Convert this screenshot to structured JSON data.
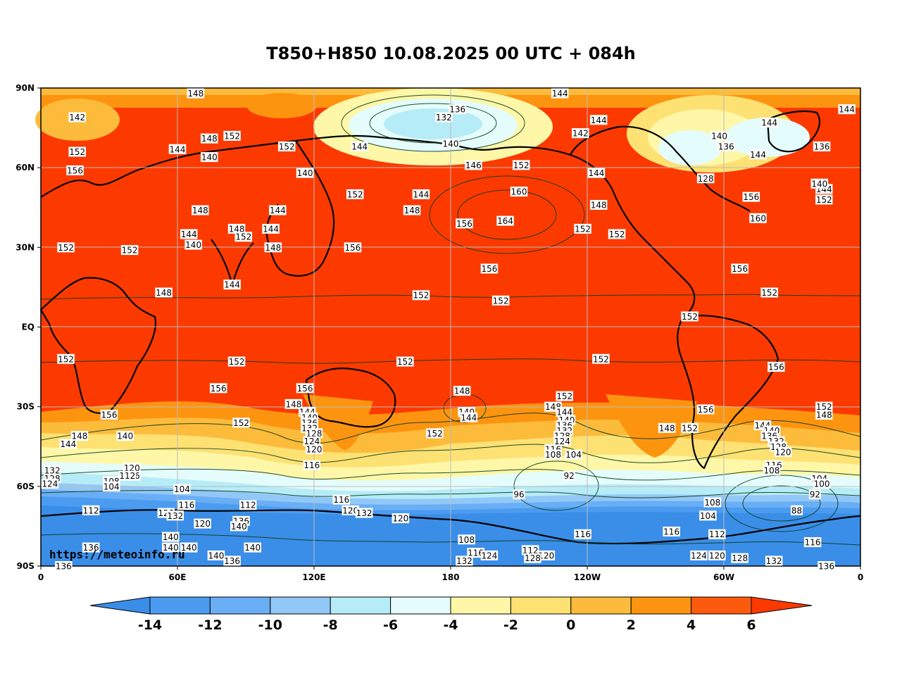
{
  "title": "T850+H850 10.08.2025 00 UTC + 084h",
  "credit": "https://meteoinfo.ru",
  "map": {
    "lat_labels": [
      "90N",
      "60N",
      "30N",
      "EQ",
      "30S",
      "60S",
      "90S"
    ],
    "lon_labels": [
      "0",
      "60E",
      "120E",
      "180",
      "120W",
      "60W",
      "0"
    ],
    "contour_labels": [
      {
        "text": "148",
        "lon": 68,
        "lat": 88
      },
      {
        "text": "144",
        "lon": 228,
        "lat": 88
      },
      {
        "text": "144",
        "lon": 354,
        "lat": 82
      },
      {
        "text": "136",
        "lon": 183,
        "lat": 82
      },
      {
        "text": "132",
        "lon": 177,
        "lat": 79
      },
      {
        "text": "144",
        "lon": 320,
        "lat": 77
      },
      {
        "text": "144",
        "lon": 245,
        "lat": 78
      },
      {
        "text": "142",
        "lon": 237,
        "lat": 73
      },
      {
        "text": "140",
        "lon": 298,
        "lat": 72
      },
      {
        "text": "136",
        "lon": 301,
        "lat": 68
      },
      {
        "text": "136",
        "lon": 343,
        "lat": 68
      },
      {
        "text": "144",
        "lon": 315,
        "lat": 65
      },
      {
        "text": "140",
        "lon": 180,
        "lat": 69
      },
      {
        "text": "144",
        "lon": 140,
        "lat": 68
      },
      {
        "text": "146",
        "lon": 190,
        "lat": 61
      },
      {
        "text": "152",
        "lon": 211,
        "lat": 61
      },
      {
        "text": "144",
        "lon": 244,
        "lat": 58
      },
      {
        "text": "128",
        "lon": 292,
        "lat": 56
      },
      {
        "text": "140",
        "lon": 116,
        "lat": 58
      },
      {
        "text": "142",
        "lon": 16,
        "lat": 79
      },
      {
        "text": "152",
        "lon": 16,
        "lat": 66
      },
      {
        "text": "156",
        "lon": 15,
        "lat": 59
      },
      {
        "text": "144",
        "lon": 60,
        "lat": 67
      },
      {
        "text": "148",
        "lon": 74,
        "lat": 71
      },
      {
        "text": "152",
        "lon": 84,
        "lat": 72
      },
      {
        "text": "140",
        "lon": 74,
        "lat": 64
      },
      {
        "text": "152",
        "lon": 108,
        "lat": 68
      },
      {
        "text": "152",
        "lon": 138,
        "lat": 50
      },
      {
        "text": "144",
        "lon": 167,
        "lat": 50
      },
      {
        "text": "148",
        "lon": 163,
        "lat": 44
      },
      {
        "text": "160",
        "lon": 210,
        "lat": 51
      },
      {
        "text": "156",
        "lon": 186,
        "lat": 39
      },
      {
        "text": "164",
        "lon": 204,
        "lat": 40
      },
      {
        "text": "148",
        "lon": 245,
        "lat": 46
      },
      {
        "text": "152",
        "lon": 238,
        "lat": 37
      },
      {
        "text": "152",
        "lon": 253,
        "lat": 35
      },
      {
        "text": "144",
        "lon": 344,
        "lat": 52
      },
      {
        "text": "140",
        "lon": 342,
        "lat": 54
      },
      {
        "text": "152",
        "lon": 344,
        "lat": 48
      },
      {
        "text": "156",
        "lon": 312,
        "lat": 49
      },
      {
        "text": "160",
        "lon": 315,
        "lat": 41
      },
      {
        "text": "156",
        "lon": 307,
        "lat": 22
      },
      {
        "text": "152",
        "lon": 320,
        "lat": 13
      },
      {
        "text": "148",
        "lon": 70,
        "lat": 44
      },
      {
        "text": "144",
        "lon": 65,
        "lat": 35
      },
      {
        "text": "140",
        "lon": 67,
        "lat": 31
      },
      {
        "text": "144",
        "lon": 104,
        "lat": 44
      },
      {
        "text": "148",
        "lon": 86,
        "lat": 37
      },
      {
        "text": "152",
        "lon": 89,
        "lat": 34
      },
      {
        "text": "144",
        "lon": 101,
        "lat": 37
      },
      {
        "text": "148",
        "lon": 102,
        "lat": 30
      },
      {
        "text": "152",
        "lon": 11,
        "lat": 30
      },
      {
        "text": "152",
        "lon": 39,
        "lat": 29
      },
      {
        "text": "156",
        "lon": 137,
        "lat": 30
      },
      {
        "text": "156",
        "lon": 197,
        "lat": 22
      },
      {
        "text": "144",
        "lon": 84,
        "lat": 16
      },
      {
        "text": "148",
        "lon": 54,
        "lat": 13
      },
      {
        "text": "152",
        "lon": 167,
        "lat": 12
      },
      {
        "text": "152",
        "lon": 202,
        "lat": 10
      },
      {
        "text": "152",
        "lon": 285,
        "lat": 4
      },
      {
        "text": "152",
        "lon": 11,
        "lat": -12
      },
      {
        "text": "152",
        "lon": 86,
        "lat": -13
      },
      {
        "text": "152",
        "lon": 160,
        "lat": -13
      },
      {
        "text": "152",
        "lon": 246,
        "lat": -12
      },
      {
        "text": "156",
        "lon": 323,
        "lat": -15
      },
      {
        "text": "156",
        "lon": 78,
        "lat": -23
      },
      {
        "text": "156",
        "lon": 116,
        "lat": -23
      },
      {
        "text": "148",
        "lon": 111,
        "lat": -29
      },
      {
        "text": "144",
        "lon": 117,
        "lat": -32
      },
      {
        "text": "140",
        "lon": 118,
        "lat": -34
      },
      {
        "text": "136",
        "lon": 118,
        "lat": -36
      },
      {
        "text": "132",
        "lon": 118,
        "lat": -38
      },
      {
        "text": "128",
        "lon": 120,
        "lat": -40
      },
      {
        "text": "124",
        "lon": 119,
        "lat": -43
      },
      {
        "text": "120",
        "lon": 120,
        "lat": -46
      },
      {
        "text": "116",
        "lon": 119,
        "lat": -52
      },
      {
        "text": "156",
        "lon": 30,
        "lat": -33
      },
      {
        "text": "152",
        "lon": 88,
        "lat": -36
      },
      {
        "text": "148",
        "lon": 17,
        "lat": -41
      },
      {
        "text": "144",
        "lon": 12,
        "lat": -44
      },
      {
        "text": "140",
        "lon": 37,
        "lat": -41
      },
      {
        "text": "148",
        "lon": 185,
        "lat": -24
      },
      {
        "text": "140",
        "lon": 187,
        "lat": -32
      },
      {
        "text": "144",
        "lon": 188,
        "lat": -34
      },
      {
        "text": "152",
        "lon": 173,
        "lat": -40
      },
      {
        "text": "152",
        "lon": 230,
        "lat": -26
      },
      {
        "text": "148",
        "lon": 225,
        "lat": -30
      },
      {
        "text": "144",
        "lon": 230,
        "lat": -32
      },
      {
        "text": "140",
        "lon": 231,
        "lat": -35
      },
      {
        "text": "136",
        "lon": 230,
        "lat": -37
      },
      {
        "text": "132",
        "lon": 230,
        "lat": -39
      },
      {
        "text": "128",
        "lon": 229,
        "lat": -41
      },
      {
        "text": "124",
        "lon": 229,
        "lat": -43
      },
      {
        "text": "116",
        "lon": 225,
        "lat": -46
      },
      {
        "text": "108",
        "lon": 225,
        "lat": -48
      },
      {
        "text": "104",
        "lon": 234,
        "lat": -48
      },
      {
        "text": "92",
        "lon": 232,
        "lat": -56
      },
      {
        "text": "96",
        "lon": 210,
        "lat": -63
      },
      {
        "text": "148",
        "lon": 275,
        "lat": -38
      },
      {
        "text": "152",
        "lon": 285,
        "lat": -38
      },
      {
        "text": "156",
        "lon": 292,
        "lat": -31
      },
      {
        "text": "152",
        "lon": 344,
        "lat": -30
      },
      {
        "text": "148",
        "lon": 344,
        "lat": -33
      },
      {
        "text": "144",
        "lon": 317,
        "lat": -37
      },
      {
        "text": "140",
        "lon": 321,
        "lat": -39
      },
      {
        "text": "136",
        "lon": 320,
        "lat": -41
      },
      {
        "text": "132",
        "lon": 323,
        "lat": -43
      },
      {
        "text": "128",
        "lon": 324,
        "lat": -45
      },
      {
        "text": "120",
        "lon": 326,
        "lat": -47
      },
      {
        "text": "116",
        "lon": 322,
        "lat": -52
      },
      {
        "text": "108",
        "lon": 321,
        "lat": -54
      },
      {
        "text": "104",
        "lon": 342,
        "lat": -57
      },
      {
        "text": "100",
        "lon": 343,
        "lat": -59
      },
      {
        "text": "92",
        "lon": 340,
        "lat": -63
      },
      {
        "text": "88",
        "lon": 332,
        "lat": -69
      },
      {
        "text": "108",
        "lon": 295,
        "lat": -66
      },
      {
        "text": "104",
        "lon": 293,
        "lat": -71
      },
      {
        "text": "132",
        "lon": 5,
        "lat": -54
      },
      {
        "text": "128",
        "lon": 5,
        "lat": -57
      },
      {
        "text": "124",
        "lon": 4,
        "lat": -59
      },
      {
        "text": "120",
        "lon": 40,
        "lat": -53
      },
      {
        "text": "116",
        "lon": 40,
        "lat": -56
      },
      {
        "text": "112",
        "lon": 38,
        "lat": -56
      },
      {
        "text": "108",
        "lon": 31,
        "lat": -58
      },
      {
        "text": "104",
        "lon": 31,
        "lat": -60
      },
      {
        "text": "104",
        "lon": 62,
        "lat": -61
      },
      {
        "text": "116",
        "lon": 64,
        "lat": -67
      },
      {
        "text": "112",
        "lon": 91,
        "lat": -67
      },
      {
        "text": "112",
        "lon": 22,
        "lat": -69
      },
      {
        "text": "128",
        "lon": 55,
        "lat": -70
      },
      {
        "text": "132",
        "lon": 59,
        "lat": -71
      },
      {
        "text": "120",
        "lon": 71,
        "lat": -74
      },
      {
        "text": "136",
        "lon": 88,
        "lat": -73
      },
      {
        "text": "140",
        "lon": 87,
        "lat": -75
      },
      {
        "text": "116",
        "lon": 132,
        "lat": -65
      },
      {
        "text": "120",
        "lon": 136,
        "lat": -69
      },
      {
        "text": "132",
        "lon": 142,
        "lat": -70
      },
      {
        "text": "120",
        "lon": 158,
        "lat": -72
      },
      {
        "text": "136",
        "lon": 22,
        "lat": -83
      },
      {
        "text": "140",
        "lon": 57,
        "lat": -79
      },
      {
        "text": "140",
        "lon": 57,
        "lat": -83
      },
      {
        "text": "140",
        "lon": 65,
        "lat": -83
      },
      {
        "text": "140",
        "lon": 93,
        "lat": -83
      },
      {
        "text": "136",
        "lon": 84,
        "lat": -88
      },
      {
        "text": "140",
        "lon": 77,
        "lat": -86
      },
      {
        "text": "136",
        "lon": 10,
        "lat": -90
      },
      {
        "text": "108",
        "lon": 187,
        "lat": -80
      },
      {
        "text": "116",
        "lon": 191,
        "lat": -85
      },
      {
        "text": "124",
        "lon": 197,
        "lat": -86
      },
      {
        "text": "132",
        "lon": 186,
        "lat": -88
      },
      {
        "text": "112",
        "lon": 215,
        "lat": -84
      },
      {
        "text": "120",
        "lon": 222,
        "lat": -86
      },
      {
        "text": "128",
        "lon": 216,
        "lat": -87
      },
      {
        "text": "116",
        "lon": 238,
        "lat": -78
      },
      {
        "text": "116",
        "lon": 277,
        "lat": -77
      },
      {
        "text": "112",
        "lon": 297,
        "lat": -78
      },
      {
        "text": "124",
        "lon": 289,
        "lat": -86
      },
      {
        "text": "120",
        "lon": 297,
        "lat": -86
      },
      {
        "text": "128",
        "lon": 307,
        "lat": -87
      },
      {
        "text": "132",
        "lon": 322,
        "lat": -88
      },
      {
        "text": "116",
        "lon": 339,
        "lat": -81
      },
      {
        "text": "136",
        "lon": 345,
        "lat": -90
      }
    ]
  },
  "colorbar": {
    "labels": [
      "-14",
      "-12",
      "-10",
      "-8",
      "-6",
      "-4",
      "-2",
      "0",
      "2",
      "4",
      "6"
    ],
    "colors": [
      "#3a8ee8",
      "#4b9cf0",
      "#6aaef5",
      "#92c8f7",
      "#b6ecf7",
      "#e4fcfb",
      "#fdf7a7",
      "#fde173",
      "#fdbb3b",
      "#fd9410",
      "#fc5a0c",
      "#fc3a00"
    ]
  }
}
